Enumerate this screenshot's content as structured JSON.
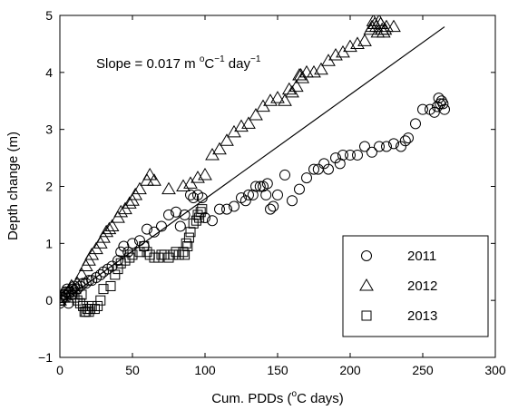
{
  "chart_data": {
    "type": "scatter",
    "title": "",
    "xlabel": {
      "pre": "Cum. PDDs (",
      "sup": "o",
      "post": "C days)"
    },
    "ylabel": "Depth change (m)",
    "xlim": [
      0,
      300
    ],
    "ylim": [
      -1,
      5
    ],
    "xticks": [
      0,
      50,
      100,
      150,
      200,
      250,
      300
    ],
    "yticks": [
      -1,
      0,
      1,
      2,
      3,
      4,
      5
    ],
    "xtick_labels": [
      "0",
      "50",
      "100",
      "150",
      "200",
      "250",
      "300"
    ],
    "ytick_labels": [
      "−1",
      "0",
      "1",
      "2",
      "3",
      "4",
      "5"
    ],
    "grid": false,
    "legend_position": "lower-right",
    "annotation": {
      "a": "Slope = 0.017 m ",
      "b": "o",
      "c": "C",
      "d": "−1",
      "e": " day",
      "f": "−1"
    },
    "colors": {
      "markers": "#000000",
      "background": "#ffffff",
      "axes": "#000000"
    },
    "fit_line": {
      "slope": 0.017,
      "x": [
        0,
        265
      ],
      "y": [
        -0.05,
        4.8
      ]
    },
    "series": [
      {
        "name": "2011",
        "marker": "circle",
        "x": [
          0,
          1,
          2,
          3,
          4,
          5,
          6,
          7,
          8,
          9,
          10,
          12,
          14,
          16,
          18,
          20,
          22,
          25,
          28,
          30,
          33,
          36,
          40,
          42,
          44,
          47,
          50,
          55,
          58,
          60,
          65,
          70,
          75,
          80,
          83,
          86,
          90,
          92,
          95,
          98,
          100,
          105,
          110,
          115,
          120,
          125,
          128,
          130,
          133,
          135,
          138,
          140,
          142,
          143,
          145,
          147,
          150,
          155,
          160,
          165,
          170,
          175,
          178,
          182,
          185,
          190,
          193,
          195,
          200,
          205,
          210,
          215,
          220,
          225,
          230,
          235,
          238,
          240,
          245,
          250,
          255,
          258,
          260,
          261,
          262,
          263,
          264,
          265
        ],
        "y": [
          -0.05,
          0,
          0.05,
          0.1,
          0.15,
          0.2,
          -0.05,
          0.15,
          0.1,
          0.2,
          0.25,
          0.2,
          0.25,
          0.3,
          0.3,
          0.35,
          0.35,
          0.4,
          0.45,
          0.5,
          0.55,
          0.6,
          0.7,
          0.85,
          0.95,
          0.85,
          1.0,
          1.05,
          0.95,
          1.25,
          1.2,
          1.3,
          1.5,
          1.55,
          1.3,
          1.5,
          1.85,
          1.8,
          1.85,
          1.8,
          1.45,
          1.4,
          1.6,
          1.6,
          1.65,
          1.8,
          1.75,
          1.85,
          1.85,
          2.0,
          2.0,
          2.0,
          1.85,
          2.05,
          1.6,
          1.65,
          1.85,
          2.2,
          1.75,
          1.95,
          2.15,
          2.3,
          2.3,
          2.4,
          2.3,
          2.5,
          2.4,
          2.55,
          2.55,
          2.55,
          2.7,
          2.6,
          2.7,
          2.7,
          2.75,
          2.7,
          2.8,
          2.85,
          3.1,
          3.35,
          3.35,
          3.3,
          3.4,
          3.55,
          3.45,
          3.5,
          3.45,
          3.35
        ]
      },
      {
        "name": "2012",
        "marker": "triangle",
        "x": [
          0,
          2,
          4,
          6,
          8,
          10,
          12,
          15,
          18,
          20,
          22,
          25,
          28,
          30,
          32,
          34,
          36,
          40,
          42,
          45,
          48,
          50,
          52,
          55,
          60,
          62,
          65,
          75,
          85,
          90,
          95,
          100,
          105,
          110,
          115,
          120,
          125,
          130,
          135,
          140,
          145,
          150,
          155,
          158,
          160,
          163,
          165,
          166,
          167,
          170,
          175,
          180,
          185,
          190,
          195,
          200,
          205,
          210,
          214,
          215,
          216,
          217,
          218,
          219,
          220,
          221,
          222,
          223,
          224,
          225,
          230
        ],
        "y": [
          0,
          0.05,
          0.1,
          0.15,
          0.25,
          0.2,
          0.3,
          0.45,
          0.6,
          0.7,
          0.8,
          0.9,
          1.0,
          1.1,
          1.2,
          1.25,
          1.3,
          1.45,
          1.55,
          1.6,
          1.7,
          1.75,
          1.85,
          1.95,
          2.1,
          2.2,
          2.1,
          1.95,
          2.0,
          2.05,
          2.15,
          2.2,
          2.55,
          2.65,
          2.8,
          2.95,
          3.05,
          3.1,
          3.25,
          3.4,
          3.5,
          3.55,
          3.5,
          3.7,
          3.65,
          3.75,
          3.95,
          3.95,
          3.9,
          4.0,
          4.0,
          4.05,
          4.2,
          4.3,
          4.35,
          4.45,
          4.5,
          4.55,
          4.75,
          4.8,
          4.9,
          4.85,
          4.8,
          4.7,
          4.9,
          4.85,
          4.75,
          4.7,
          4.75,
          4.8,
          4.8
        ]
      },
      {
        "name": "2013",
        "marker": "square",
        "x": [
          0,
          2,
          4,
          6,
          8,
          10,
          12,
          14,
          15,
          16,
          17,
          18,
          19,
          20,
          21,
          22,
          24,
          26,
          28,
          30,
          35,
          38,
          40,
          42,
          45,
          48,
          50,
          55,
          58,
          60,
          62,
          65,
          68,
          70,
          72,
          75,
          78,
          80,
          82,
          85,
          86,
          87,
          88,
          89,
          90,
          92,
          94,
          95,
          96,
          97,
          98
        ],
        "y": [
          0,
          0.05,
          0.1,
          0.15,
          0.1,
          0.05,
          0.0,
          -0.05,
          0.1,
          -0.1,
          -0.2,
          -0.2,
          -0.15,
          -0.2,
          -0.15,
          -0.1,
          -0.15,
          -0.1,
          0.0,
          0.2,
          0.25,
          0.45,
          0.55,
          0.65,
          0.7,
          0.75,
          0.8,
          0.85,
          0.95,
          0.85,
          0.8,
          0.75,
          0.75,
          0.8,
          0.8,
          0.75,
          0.8,
          0.85,
          0.8,
          0.85,
          0.8,
          1.0,
          0.95,
          1.1,
          1.2,
          1.35,
          1.4,
          1.5,
          1.45,
          1.55,
          1.6
        ]
      }
    ]
  }
}
